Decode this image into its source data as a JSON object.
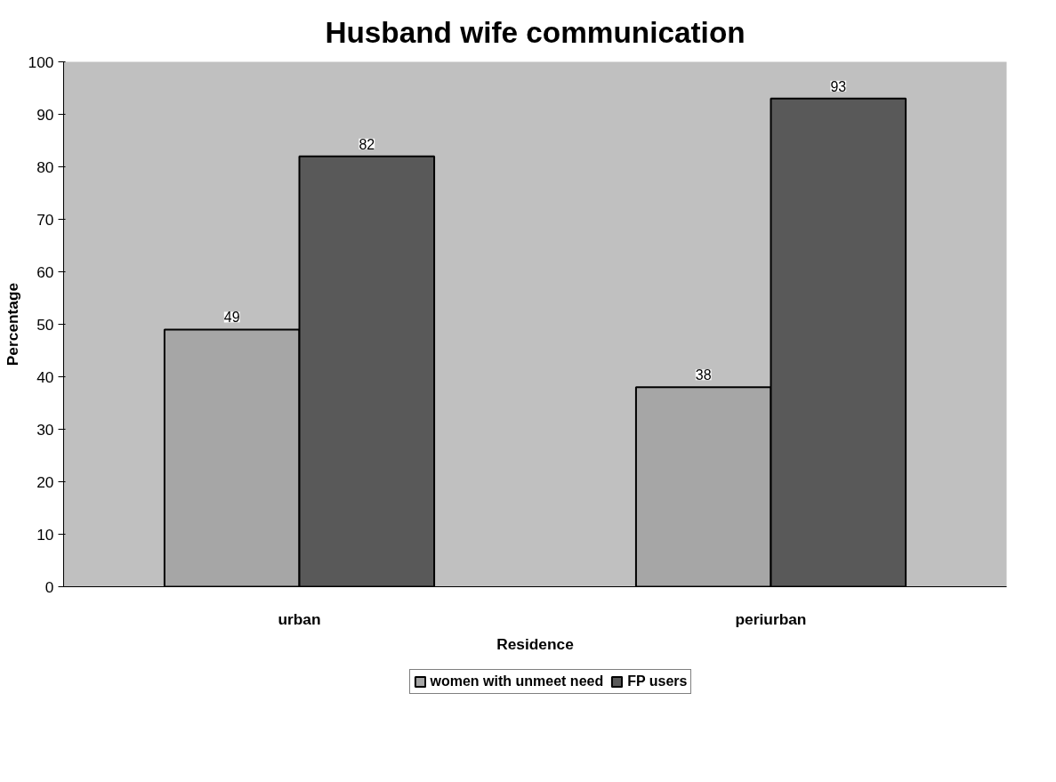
{
  "chart_data": {
    "type": "bar",
    "title": "Husband wife communication",
    "xlabel": "Residence",
    "ylabel": "Percentage",
    "categories": [
      "urban",
      "periurban"
    ],
    "series": [
      {
        "name": "women with unmeet need",
        "color": "#a6a6a6",
        "values": [
          49,
          38
        ]
      },
      {
        "name": "FP users",
        "color": "#595959",
        "values": [
          82,
          93
        ]
      }
    ],
    "ylim": [
      0,
      100
    ],
    "yticks": [
      0,
      10,
      20,
      30,
      40,
      50,
      60,
      70,
      80,
      90,
      100
    ],
    "grid": false,
    "legend": "bottom",
    "data_labels": true
  }
}
